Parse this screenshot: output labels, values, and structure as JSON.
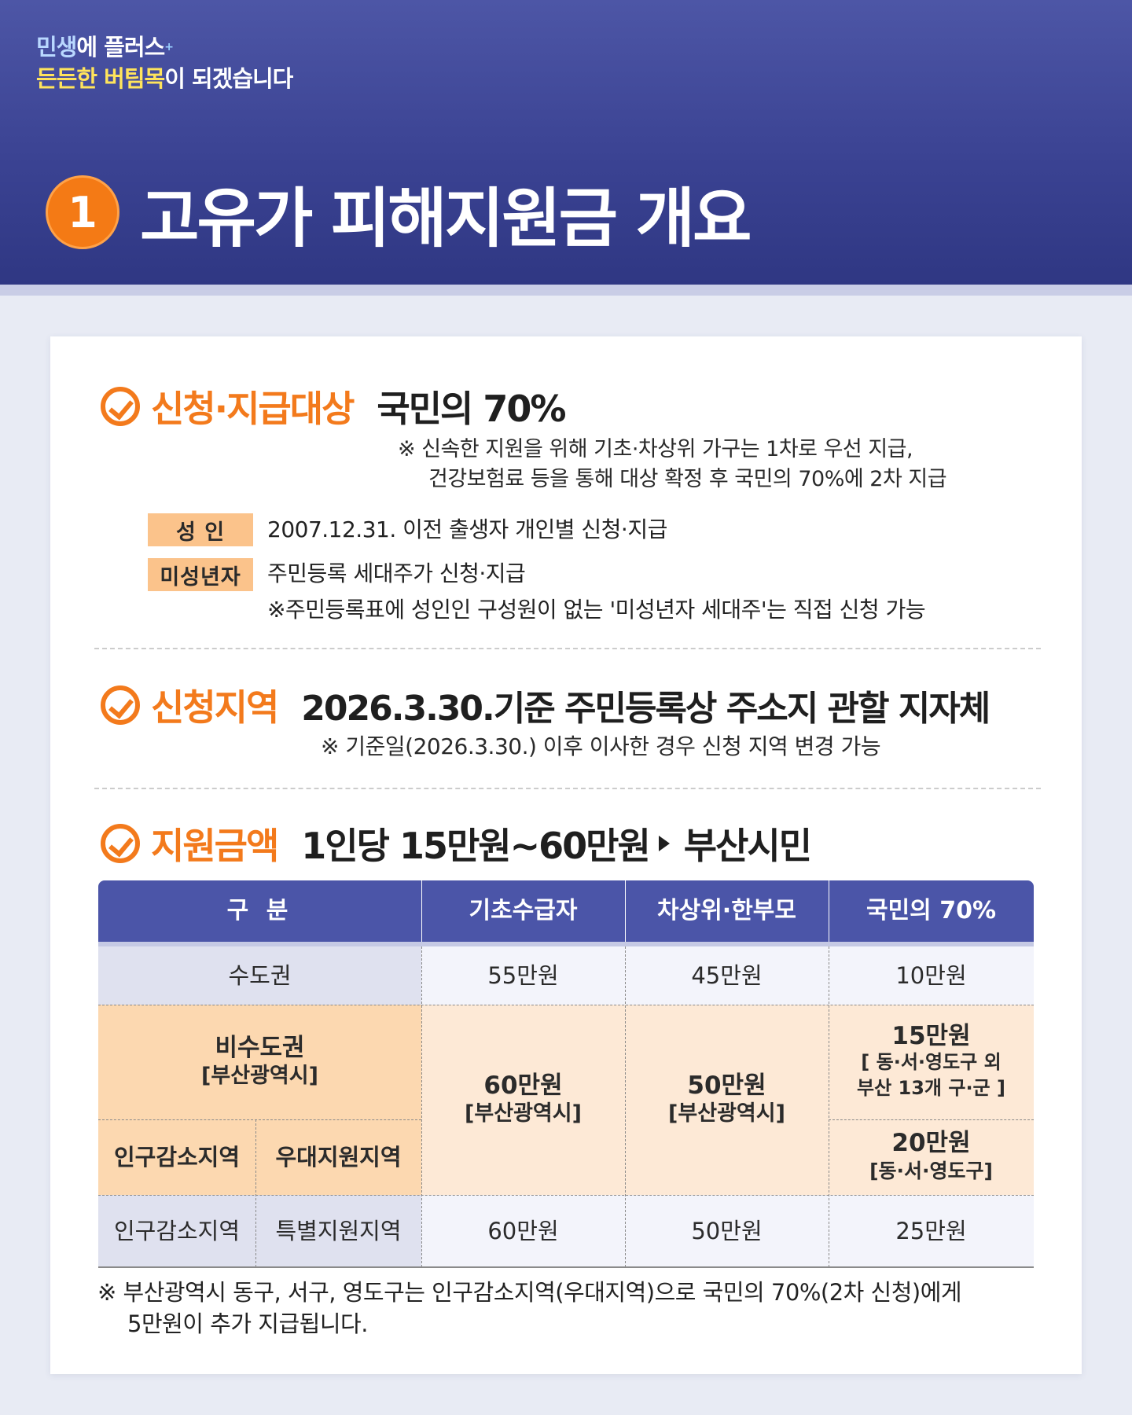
{
  "header": {
    "slogan_l1_a": "민생",
    "slogan_l1_b": "에 플러스",
    "slogan_l1_mark": "+",
    "slogan_l2_a": "든든한 버팀목",
    "slogan_l2_b": "이 되겠습니다",
    "number": "1",
    "title": "고유가 피해지원금 개요"
  },
  "target": {
    "label": "신청·지급대상",
    "value": "국민의 70%",
    "note_l1": "※ 신속한 지원을 위해 기초·차상위 가구는 1차로 우선 지급,",
    "note_l2": "건강보험료 등을 통해 대상 확정 후 국민의 70%에 2차 지급",
    "adult_tag": "성 인",
    "adult_desc": "2007.12.31. 이전 출생자 개인별 신청·지급",
    "minor_tag": "미성년자",
    "minor_desc_l1": "주민등록 세대주가 신청·지급",
    "minor_desc_l2": "※주민등록표에 성인인 구성원이 없는 '미성년자 세대주'는 직접 신청 가능"
  },
  "region": {
    "label": "신청지역",
    "value": "2026.3.30.기준 주민등록상 주소지 관할 지자체",
    "note": "※ 기준일(2026.3.30.) 이후 이사한 경우 신청 지역 변경 가능"
  },
  "amount": {
    "label": "지원금액",
    "value_a": "1인당 15만원~60만원",
    "value_b": "부산시민"
  },
  "table": {
    "headers": [
      "구   분",
      "기초수급자",
      "차상위·한부모",
      "국민의 70%"
    ],
    "row_capital": {
      "label": "수도권",
      "basic": "55만원",
      "near_poor": "45만원",
      "seventy": "10만원"
    },
    "row_noncapital": {
      "label_l1": "비수도권",
      "label_l2": "[부산광역시]",
      "basic_l1": "60만원",
      "basic_l2": "[부산광역시]",
      "near_poor_l1": "50만원",
      "near_poor_l2": "[부산광역시]",
      "seventy_a_l1": "15만원",
      "seventy_a_l2": "[ 동·서·영도구 외",
      "seventy_a_l3": "부산 13개 구·군 ]",
      "seventy_b_l1": "20만원",
      "seventy_b_l2": "[동·서·영도구]"
    },
    "sub_labels": [
      "인구감소지역",
      "우대지원지역"
    ],
    "row_special": {
      "label_a": "인구감소지역",
      "label_b": "특별지원지역",
      "basic": "60만원",
      "near_poor": "50만원",
      "seventy": "25만원"
    }
  },
  "footnote_l1": "※ 부산광역시 동구, 서구, 영도구는 인구감소지역(우대지역)으로 국민의 70%(2차 신청)에게",
  "footnote_l2": "5만원이 추가 지급됩니다.",
  "colors": {
    "navy": "#3b4393",
    "orange": "#f37a1c",
    "peach": "#fcd8b0",
    "yellow": "#ffe45c"
  },
  "icons": [
    "check-circle-icon",
    "triangle-right-icon"
  ]
}
